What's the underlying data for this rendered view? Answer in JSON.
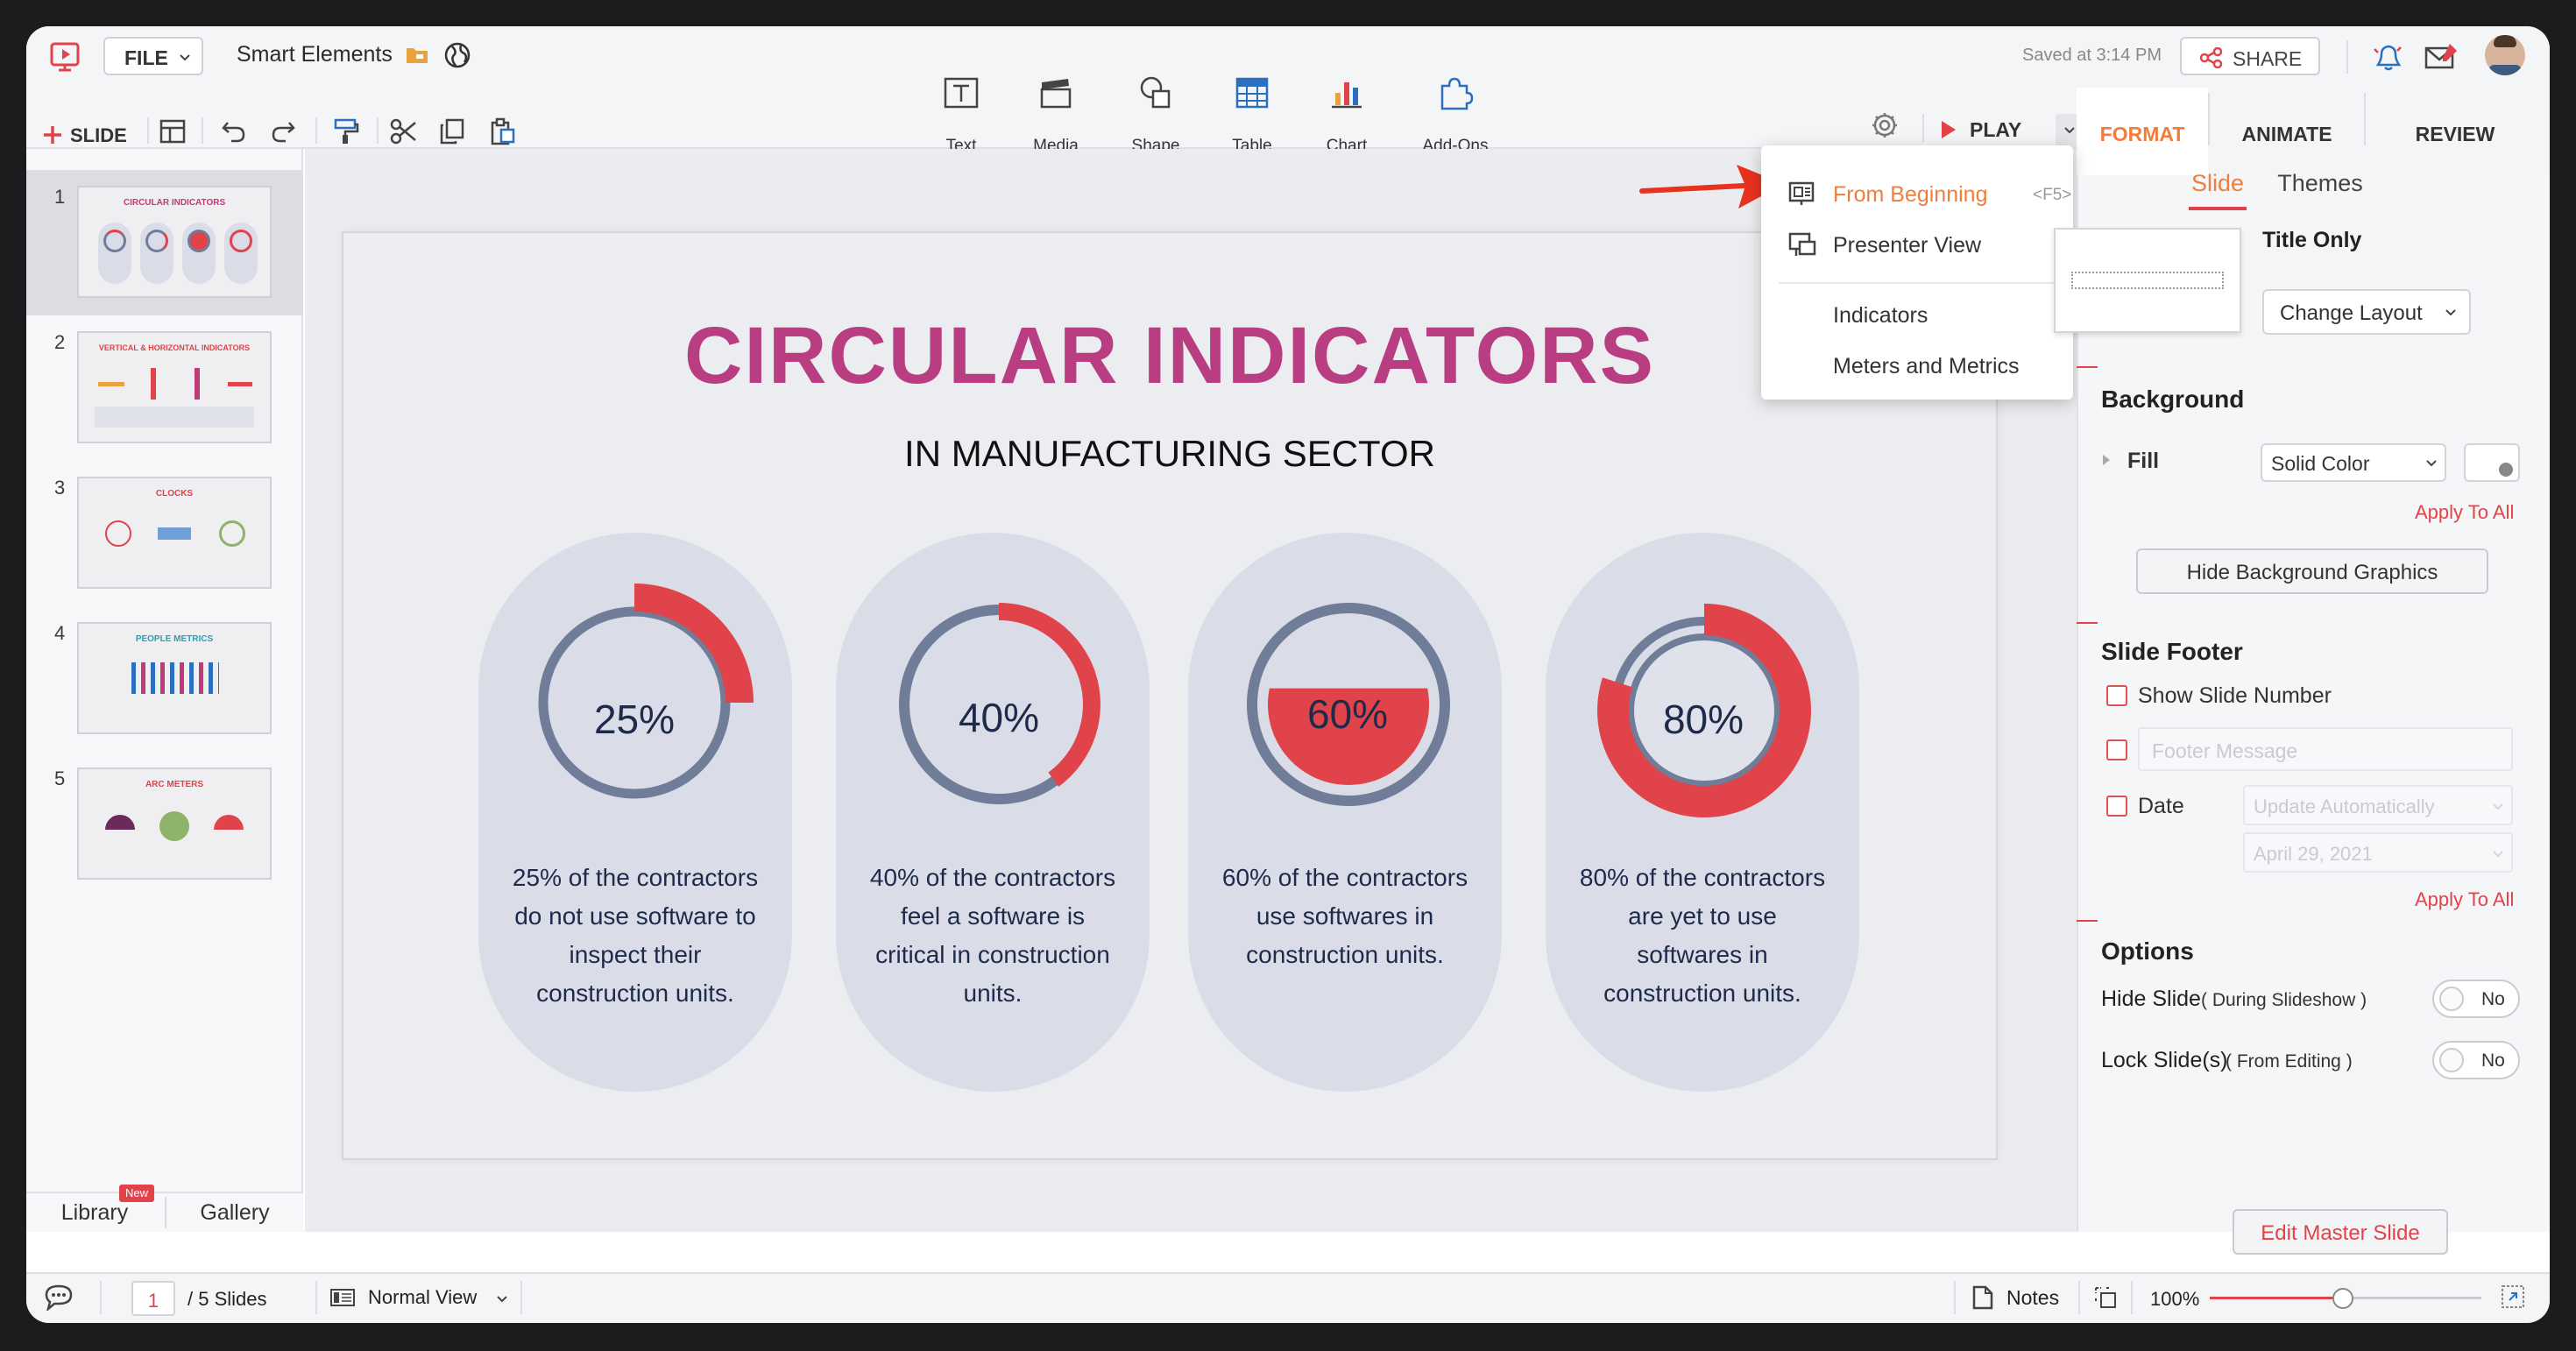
{
  "app": {
    "doc_title": "Smart Elements",
    "saved": "Saved at 3:14 PM",
    "share": "SHARE",
    "file": "FILE",
    "slide": "SLIDE",
    "play": "PLAY"
  },
  "insert": [
    {
      "name": "text",
      "label": "Text"
    },
    {
      "name": "media",
      "label": "Media"
    },
    {
      "name": "shape",
      "label": "Shape"
    },
    {
      "name": "table",
      "label": "Table"
    },
    {
      "name": "chart",
      "label": "Chart"
    },
    {
      "name": "addons",
      "label": "Add-Ons"
    }
  ],
  "panel_tabs": [
    "FORMAT",
    "ANIMATE",
    "REVIEW"
  ],
  "play_menu": {
    "from_beginning": "From Beginning",
    "shortcut": "<F5>",
    "presenter": "Presenter View",
    "indicators": "Indicators",
    "meters": "Meters and Metrics"
  },
  "slides": [
    {
      "n": "1",
      "title": "CIRCULAR INDICATORS",
      "color": "#c03a7a"
    },
    {
      "n": "2",
      "title": "VERTICAL & HORIZONTAL INDICATORS",
      "color": "#e0444a"
    },
    {
      "n": "3",
      "title": "CLOCKS",
      "color": "#e0444a"
    },
    {
      "n": "4",
      "title": "PEOPLE METRICS",
      "color": "#2b9fb0"
    },
    {
      "n": "5",
      "title": "ARC METERS",
      "color": "#e0444a"
    }
  ],
  "left_bottom": {
    "library": "Library",
    "new_badge": "New",
    "gallery": "Gallery"
  },
  "slide_content": {
    "title": "CIRCULAR INDICATORS",
    "subtitle": "IN MANUFACTURING SECTOR",
    "indicators": [
      {
        "value": "25%",
        "fraction": 0.25,
        "lines": [
          "25% of the contractors",
          "do not use software to",
          "inspect their",
          "construction units."
        ]
      },
      {
        "value": "40%",
        "fraction": 0.4,
        "lines": [
          "40% of the contractors",
          "feel a software is",
          "critical in construction",
          "units."
        ]
      },
      {
        "value": "60%",
        "fraction": 0.6,
        "lines": [
          "60% of the contractors",
          "use softwares in",
          "construction units."
        ]
      },
      {
        "value": "80%",
        "fraction": 0.8,
        "lines": [
          "80% of the contractors",
          "are yet to use",
          "softwares in",
          "construction units."
        ]
      }
    ]
  },
  "format": {
    "subtabs": [
      "Slide",
      "Themes"
    ],
    "layout_name": "Title Only",
    "change_layout": "Change Layout",
    "background": "Background",
    "fill": "Fill",
    "fill_value": "Solid Color",
    "apply_all": "Apply To All",
    "hide_bg": "Hide Background Graphics",
    "slide_footer": "Slide Footer",
    "show_slide_number": "Show Slide Number",
    "footer_placeholder": "Footer Message",
    "date": "Date",
    "date_mode": "Update Automatically",
    "date_value": "April 29, 2021",
    "options": "Options",
    "hide_slide": "Hide Slide",
    "hide_slide_note": "( During Slideshow )",
    "lock_slide": "Lock Slide(s)",
    "lock_slide_note": "( From Editing )",
    "no": "No",
    "edit_master": "Edit Master Slide"
  },
  "status": {
    "page": "1",
    "of": "/ 5 Slides",
    "view": "Normal View",
    "notes": "Notes",
    "zoom": "100%"
  },
  "colors": {
    "accent": "#f07d3c",
    "red": "#e0444a",
    "ring": "#6f7d99",
    "title": "#b83d81",
    "navy": "#1e2a4a"
  }
}
